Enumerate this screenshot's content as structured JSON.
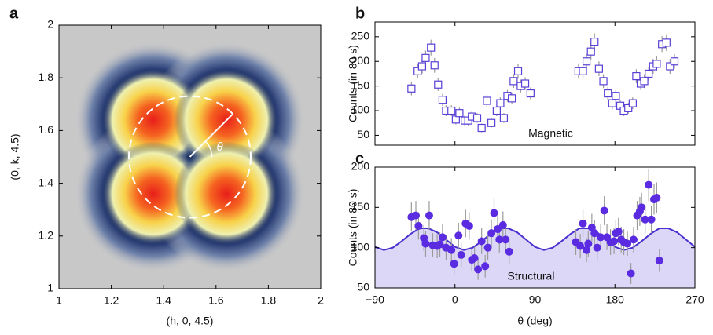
{
  "chart_data": [
    {
      "type": "contour",
      "panel_label": "a",
      "xlabel": "(h, 0, 4.5)",
      "ylabel": "(0, k, 4.5)",
      "annotation": "θ",
      "xlim": [
        1,
        2
      ],
      "ylim": [
        1,
        2
      ],
      "xticks": [
        1,
        1.2,
        1.4,
        1.6,
        1.8,
        2
      ],
      "yticks": [
        1,
        1.2,
        1.4,
        1.6,
        1.8,
        2
      ],
      "peaks": {
        "x": [
          1.36,
          1.64,
          1.36,
          1.64
        ],
        "y": [
          1.64,
          1.64,
          1.36,
          1.36
        ]
      }
    },
    {
      "type": "scatter",
      "panel_label": "b",
      "ylabel": "Counts (in 80 s)",
      "annotation": "Magnetic",
      "marker": "open-square",
      "color": "#5a3fd8",
      "xlim": [
        -90,
        270
      ],
      "ylim": [
        30,
        280
      ],
      "yticks": [
        50,
        100,
        150,
        200,
        250
      ],
      "x": [
        -49,
        -42,
        -37,
        -33,
        -27,
        -23,
        -19,
        -14,
        -10,
        -4,
        1,
        5,
        11,
        15,
        19,
        25,
        30,
        36,
        41,
        47,
        51,
        55,
        59,
        64,
        66,
        71,
        74,
        79,
        85,
        139,
        144,
        148,
        153,
        157,
        162,
        167,
        172,
        177,
        181,
        186,
        190,
        195,
        200,
        204,
        209,
        213,
        218,
        223,
        227,
        233,
        238,
        242,
        247
      ],
      "values": [
        145,
        180,
        190,
        207,
        228,
        192,
        153,
        122,
        100,
        100,
        82,
        95,
        80,
        80,
        88,
        85,
        65,
        120,
        75,
        100,
        115,
        85,
        130,
        125,
        160,
        180,
        150,
        155,
        135,
        180,
        180,
        200,
        220,
        240,
        185,
        160,
        135,
        115,
        130,
        110,
        100,
        105,
        115,
        170,
        155,
        160,
        175,
        190,
        195,
        235,
        238,
        190,
        200
      ],
      "errors": [
        14,
        14,
        15,
        15,
        16,
        15,
        13,
        12,
        11,
        11,
        10,
        11,
        10,
        10,
        10,
        10,
        9,
        12,
        9,
        11,
        12,
        10,
        12,
        12,
        14,
        15,
        13,
        13,
        12,
        15,
        15,
        15,
        16,
        17,
        15,
        14,
        13,
        12,
        12,
        11,
        11,
        11,
        12,
        14,
        13,
        14,
        14,
        15,
        15,
        16,
        17,
        15,
        15
      ]
    },
    {
      "type": "scatter",
      "panel_label": "c",
      "xlabel": "θ (deg)",
      "ylabel": "Counts (in 80 s)",
      "annotation": "Structural",
      "marker": "filled-circle",
      "color": "#5a2be0",
      "xlim": [
        -90,
        270
      ],
      "ylim": [
        50,
        200
      ],
      "xticks": [
        {
          "value": -90,
          "label": "−90"
        },
        0,
        90,
        180,
        270
      ],
      "yticks": [
        50,
        100,
        150,
        200
      ],
      "x": [
        -49,
        -44,
        -41,
        -35,
        -33,
        -29,
        -25,
        -20,
        -17,
        -14,
        -10,
        -4,
        -1,
        4,
        7,
        12,
        16,
        19,
        22,
        26,
        30,
        34,
        37,
        41,
        44,
        48,
        50,
        54,
        57,
        61,
        136,
        141,
        144,
        148,
        150,
        154,
        157,
        160,
        164,
        168,
        171,
        175,
        179,
        181,
        184,
        187,
        190,
        194,
        198,
        201,
        205,
        208,
        210,
        214,
        218,
        221,
        224,
        227,
        230
      ],
      "values": [
        138,
        140,
        127,
        112,
        105,
        140,
        103,
        102,
        104,
        113,
        100,
        97,
        80,
        115,
        91,
        130,
        127,
        85,
        87,
        73,
        108,
        77,
        100,
        118,
        143,
        123,
        110,
        128,
        110,
        95,
        107,
        102,
        130,
        97,
        105,
        125,
        118,
        100,
        113,
        146,
        113,
        107,
        108,
        118,
        120,
        110,
        107,
        105,
        68,
        110,
        140,
        145,
        150,
        135,
        178,
        135,
        160,
        162,
        84
      ],
      "errors": [
        18,
        18,
        17,
        16,
        16,
        18,
        15,
        15,
        15,
        16,
        15,
        15,
        14,
        16,
        15,
        17,
        17,
        14,
        14,
        13,
        16,
        14,
        15,
        17,
        18,
        17,
        16,
        17,
        16,
        15,
        16,
        15,
        17,
        15,
        16,
        17,
        16,
        15,
        16,
        18,
        16,
        16,
        16,
        16,
        17,
        16,
        16,
        15,
        13,
        16,
        18,
        18,
        18,
        17,
        20,
        17,
        19,
        19,
        14
      ],
      "fit": {
        "color": "#4a2fd0",
        "fill": "#dcd7f6",
        "x": [
          -90,
          -80,
          -70,
          -60,
          -50,
          -40,
          -30,
          -20,
          -10,
          0,
          10,
          20,
          30,
          40,
          50,
          60,
          70,
          80,
          90,
          100,
          110,
          120,
          130,
          140,
          150,
          160,
          170,
          180,
          190,
          200,
          210,
          220,
          230,
          240,
          250,
          260,
          270
        ],
        "values": [
          101,
          97,
          100,
          108,
          117,
          124,
          124,
          119,
          110,
          101,
          97,
          100,
          108,
          117,
          124,
          124,
          119,
          110,
          101,
          97,
          100,
          108,
          117,
          124,
          124,
          119,
          110,
          101,
          97,
          100,
          108,
          117,
          124,
          124,
          119,
          110,
          101
        ]
      }
    }
  ]
}
